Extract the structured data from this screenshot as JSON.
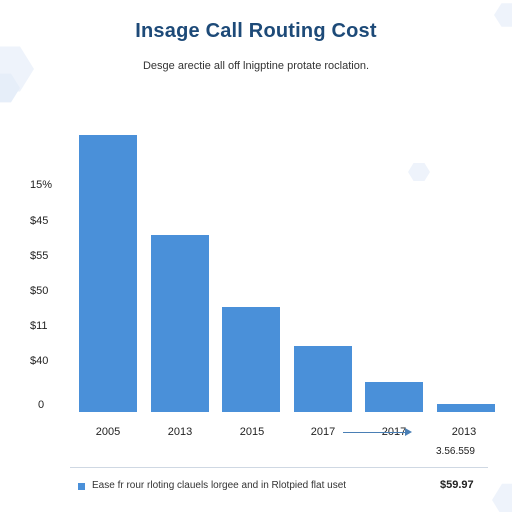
{
  "chart_data": {
    "type": "bar",
    "title": "Insage Call Routing Cost",
    "subtitle": "Desgе arectie all off lnigptine protate roclation.",
    "categories": [
      "2005",
      "2013",
      "2015",
      "2017",
      "2017",
      "2013"
    ],
    "values": [
      100,
      64,
      38,
      24,
      11,
      3
    ],
    "ylim": [
      0,
      100
    ],
    "y_tick_labels": [
      "15%",
      "$45",
      "$55",
      "$50",
      "$11",
      "$40",
      "0"
    ],
    "xlabel": "",
    "ylabel": "",
    "grid": false,
    "bar_color": "#4a90d9",
    "annotation": "3.56.559",
    "legend": {
      "label": "Ease fr rour rloting clauels lorgee and in Rlotpied flat uset",
      "position": "bottom-left"
    },
    "total": "$59.97"
  },
  "colors": {
    "title": "#1d4a78",
    "bar": "#4a90d9",
    "decor": "#e9f0fb"
  }
}
